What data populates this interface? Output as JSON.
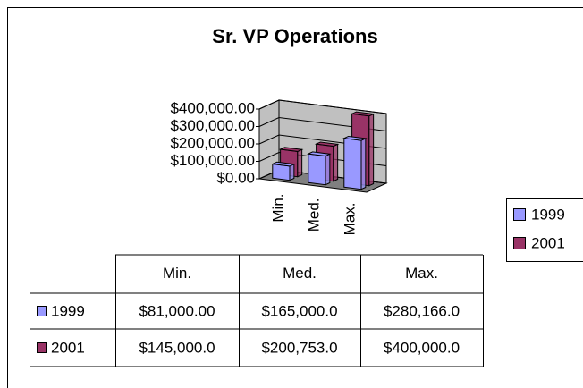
{
  "chart_data": {
    "type": "bar3d",
    "title": "Sr. VP Operations",
    "categories": [
      "Min.",
      "Med.",
      "Max."
    ],
    "series": [
      {
        "name": "1999",
        "color": "#9999ff",
        "values": [
          81000,
          165000,
          280166
        ],
        "value_labels": [
          "$81,000.00",
          "$165,000.0",
          "$280,166.0"
        ]
      },
      {
        "name": "2001",
        "color": "#993366",
        "values": [
          145000,
          200753,
          400000
        ],
        "value_labels": [
          "$145,000.0",
          "$200,753.0",
          "$400,000.0"
        ]
      }
    ],
    "ylim": [
      0,
      400000
    ],
    "yticks": [
      {
        "value": 0,
        "label": "$0.00"
      },
      {
        "value": 100000,
        "label": "$100,000.00"
      },
      {
        "value": 200000,
        "label": "$200,000.00"
      },
      {
        "value": 300000,
        "label": "$300,000.00"
      },
      {
        "value": 400000,
        "label": "$400,000.00"
      }
    ],
    "grid": true,
    "legend": "right"
  }
}
